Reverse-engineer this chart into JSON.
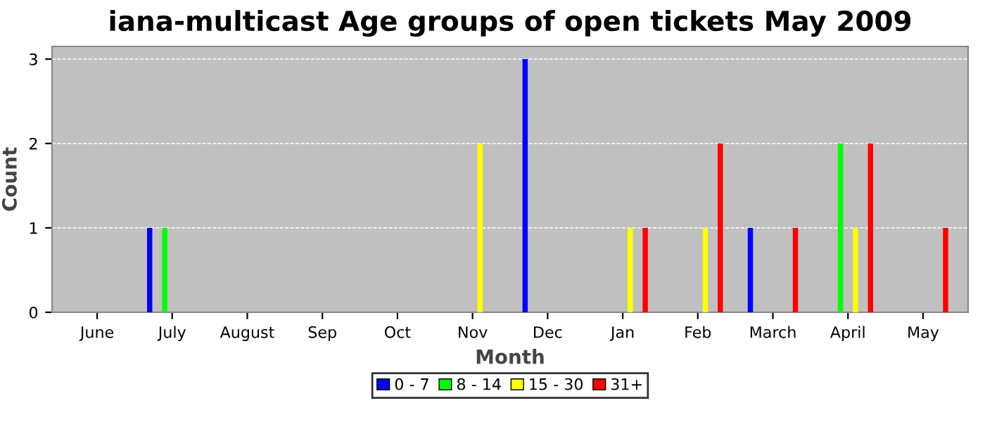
{
  "chart_data": {
    "type": "bar",
    "title": "iana-multicast Age groups of open tickets May 2009",
    "xlabel": "Month",
    "ylabel": "Count",
    "categories": [
      "June",
      "July",
      "August",
      "Sep",
      "Oct",
      "Nov",
      "Dec",
      "Jan",
      "Feb",
      "March",
      "April",
      "May"
    ],
    "series": [
      {
        "name": "0 - 7",
        "color": "#0000ff",
        "values": [
          0,
          1,
          0,
          0,
          0,
          0,
          3,
          0,
          0,
          1,
          0,
          0
        ]
      },
      {
        "name": "8 - 14",
        "color": "#00ff00",
        "values": [
          0,
          1,
          0,
          0,
          0,
          0,
          0,
          0,
          0,
          0,
          2,
          0
        ]
      },
      {
        "name": "15 - 30",
        "color": "#ffff00",
        "values": [
          0,
          0,
          0,
          0,
          0,
          2,
          0,
          1,
          1,
          0,
          1,
          0
        ]
      },
      {
        "name": "31+",
        "color": "#ff0000",
        "values": [
          0,
          0,
          0,
          0,
          0,
          0,
          0,
          1,
          2,
          1,
          2,
          1
        ]
      }
    ],
    "ylim": [
      0,
      3.15
    ],
    "yticks": [
      0,
      1,
      2,
      3
    ],
    "grid": "y",
    "legend": "bottom"
  }
}
